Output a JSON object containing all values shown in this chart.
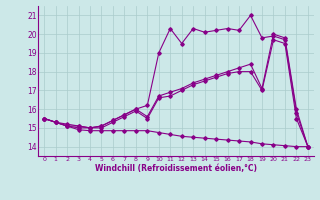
{
  "xlabel": "Windchill (Refroidissement éolien,°C)",
  "background_color": "#cce8e8",
  "grid_color": "#aacccc",
  "line_color": "#880088",
  "ylim": [
    13.5,
    21.5
  ],
  "xlim": [
    -0.5,
    23.5
  ],
  "yticks": [
    14,
    15,
    16,
    17,
    18,
    19,
    20,
    21
  ],
  "xticks": [
    0,
    1,
    2,
    3,
    4,
    5,
    6,
    7,
    8,
    9,
    10,
    11,
    12,
    13,
    14,
    15,
    16,
    17,
    18,
    19,
    20,
    21,
    22,
    23
  ],
  "series": {
    "line1_x": [
      0,
      1,
      2,
      3,
      4,
      5,
      6,
      7,
      8,
      9,
      10,
      11,
      12,
      13,
      14,
      15,
      16,
      17,
      18,
      19,
      20,
      21,
      22,
      23
    ],
    "line1_y": [
      15.5,
      15.3,
      15.1,
      14.9,
      14.85,
      14.85,
      14.85,
      14.85,
      14.85,
      14.85,
      14.75,
      14.65,
      14.55,
      14.5,
      14.45,
      14.4,
      14.35,
      14.3,
      14.25,
      14.15,
      14.1,
      14.05,
      14.0,
      14.0
    ],
    "line2_x": [
      0,
      1,
      2,
      3,
      4,
      5,
      6,
      7,
      8,
      9,
      10,
      11,
      12,
      13,
      14,
      15,
      16,
      17,
      18,
      19,
      20,
      21,
      22,
      23
    ],
    "line2_y": [
      15.5,
      15.3,
      15.1,
      15.0,
      15.0,
      15.0,
      15.3,
      15.6,
      15.9,
      15.5,
      16.6,
      16.7,
      17.0,
      17.3,
      17.5,
      17.7,
      17.9,
      18.0,
      18.0,
      17.0,
      19.7,
      19.5,
      15.5,
      14.0
    ],
    "line3_x": [
      0,
      1,
      2,
      3,
      4,
      5,
      6,
      7,
      8,
      9,
      10,
      11,
      12,
      13,
      14,
      15,
      16,
      17,
      18,
      19,
      20,
      21,
      22,
      23
    ],
    "line3_y": [
      15.5,
      15.3,
      15.1,
      15.1,
      15.0,
      15.1,
      15.4,
      15.7,
      16.0,
      15.6,
      16.7,
      16.9,
      17.1,
      17.4,
      17.6,
      17.8,
      18.0,
      18.2,
      18.4,
      17.1,
      20.0,
      19.8,
      16.0,
      14.0
    ],
    "line4_x": [
      0,
      1,
      2,
      3,
      4,
      5,
      6,
      7,
      8,
      9,
      10,
      11,
      12,
      13,
      14,
      15,
      16,
      17,
      18,
      19,
      20,
      21,
      22,
      23
    ],
    "line4_y": [
      15.5,
      15.3,
      15.2,
      15.1,
      15.0,
      15.1,
      15.4,
      15.7,
      16.0,
      16.2,
      19.0,
      20.3,
      19.5,
      20.3,
      20.1,
      20.2,
      20.3,
      20.2,
      21.0,
      19.8,
      19.9,
      19.7,
      15.8,
      14.0
    ]
  }
}
